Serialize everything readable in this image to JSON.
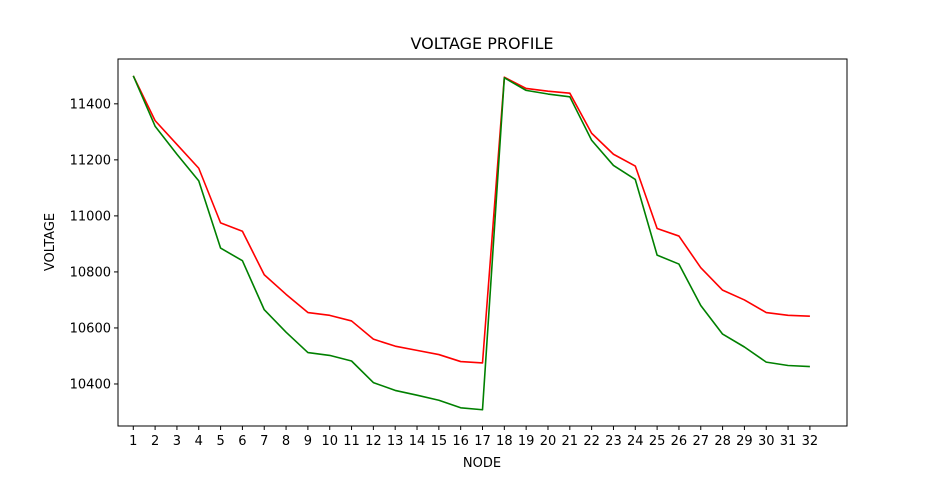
{
  "chart_data": {
    "type": "line",
    "title": "VOLTAGE PROFILE",
    "xlabel": "NODE",
    "ylabel": "VOLTAGE",
    "x": [
      1,
      2,
      3,
      4,
      5,
      6,
      7,
      8,
      9,
      10,
      11,
      12,
      13,
      14,
      15,
      16,
      17,
      18,
      19,
      20,
      21,
      22,
      23,
      24,
      25,
      26,
      27,
      28,
      29,
      30,
      31,
      32
    ],
    "xticks": [
      "1",
      "2",
      "3",
      "4",
      "5",
      "6",
      "7",
      "8",
      "9",
      "10",
      "11",
      "12",
      "13",
      "14",
      "15",
      "16",
      "17",
      "18",
      "19",
      "20",
      "21",
      "22",
      "23",
      "24",
      "25",
      "26",
      "27",
      "28",
      "29",
      "30",
      "31",
      "32"
    ],
    "ylim": [
      10250,
      11560
    ],
    "yticks": [
      10400,
      10600,
      10800,
      11000,
      11200,
      11400
    ],
    "yticklabels": [
      "10400",
      "10600",
      "10800",
      "11000",
      "11200",
      "11400"
    ],
    "grid": false,
    "series": [
      {
        "color": "#ff0000",
        "values": [
          11500,
          11340,
          11255,
          11170,
          10975,
          10945,
          10790,
          10720,
          10655,
          10645,
          10625,
          10560,
          10535,
          10520,
          10505,
          10480,
          10475,
          11495,
          11455,
          11445,
          11438,
          11295,
          11220,
          11178,
          10955,
          10928,
          10815,
          10735,
          10700,
          10655,
          10645,
          10642
        ]
      },
      {
        "color": "#008000",
        "values": [
          11500,
          11320,
          11220,
          11125,
          10885,
          10840,
          10665,
          10585,
          10512,
          10502,
          10482,
          10405,
          10377,
          10360,
          10342,
          10315,
          10308,
          11493,
          11448,
          11435,
          11425,
          11270,
          11180,
          11130,
          10860,
          10828,
          10680,
          10578,
          10532,
          10478,
          10466,
          10462
        ]
      }
    ]
  }
}
